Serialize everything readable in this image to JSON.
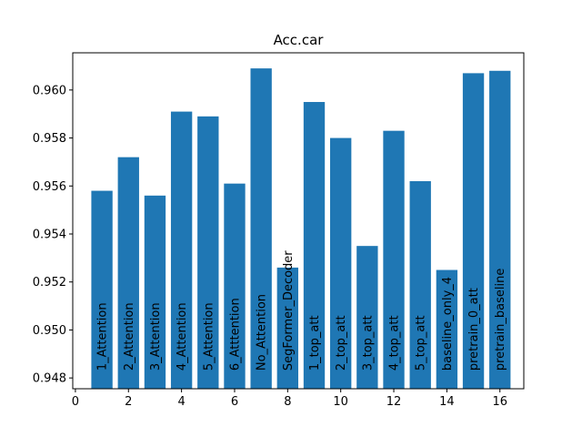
{
  "chart_data": {
    "type": "bar",
    "title": "Acc.car",
    "xlabel": "",
    "ylabel": "",
    "x": [
      1,
      2,
      3,
      4,
      5,
      6,
      7,
      8,
      9,
      10,
      11,
      12,
      13,
      14,
      15,
      16
    ],
    "categories": [
      "1_Attention",
      "2_Attention",
      "3_Attention",
      "4_Attention",
      "5_Attention",
      "6_Atttention",
      "No_Attention",
      "SegFormer_Decoder",
      "1_top_att",
      "2_top_att",
      "3_top_att",
      "4_top_att",
      "5_top_att",
      "baseline_only_4",
      "pretrain_0_att",
      "pretrain_baseline"
    ],
    "values": [
      0.9558,
      0.9572,
      0.9556,
      0.9591,
      0.9589,
      0.9561,
      0.9609,
      0.9526,
      0.9595,
      0.958,
      0.9535,
      0.9583,
      0.9562,
      0.9525,
      0.9607,
      0.9608
    ],
    "bar_color": "#1f77b4",
    "xlim": [
      -0.1,
      16.9
    ],
    "ylim": [
      0.94755,
      0.96155
    ],
    "xticks": [
      0,
      2,
      4,
      6,
      8,
      10,
      12,
      14,
      16
    ],
    "yticks": [
      0.948,
      0.95,
      0.952,
      0.954,
      0.956,
      0.958,
      0.96
    ],
    "ytick_labels": [
      "0.948",
      "0.950",
      "0.952",
      "0.954",
      "0.956",
      "0.958",
      "0.960"
    ],
    "grid": false,
    "legend": "none"
  }
}
